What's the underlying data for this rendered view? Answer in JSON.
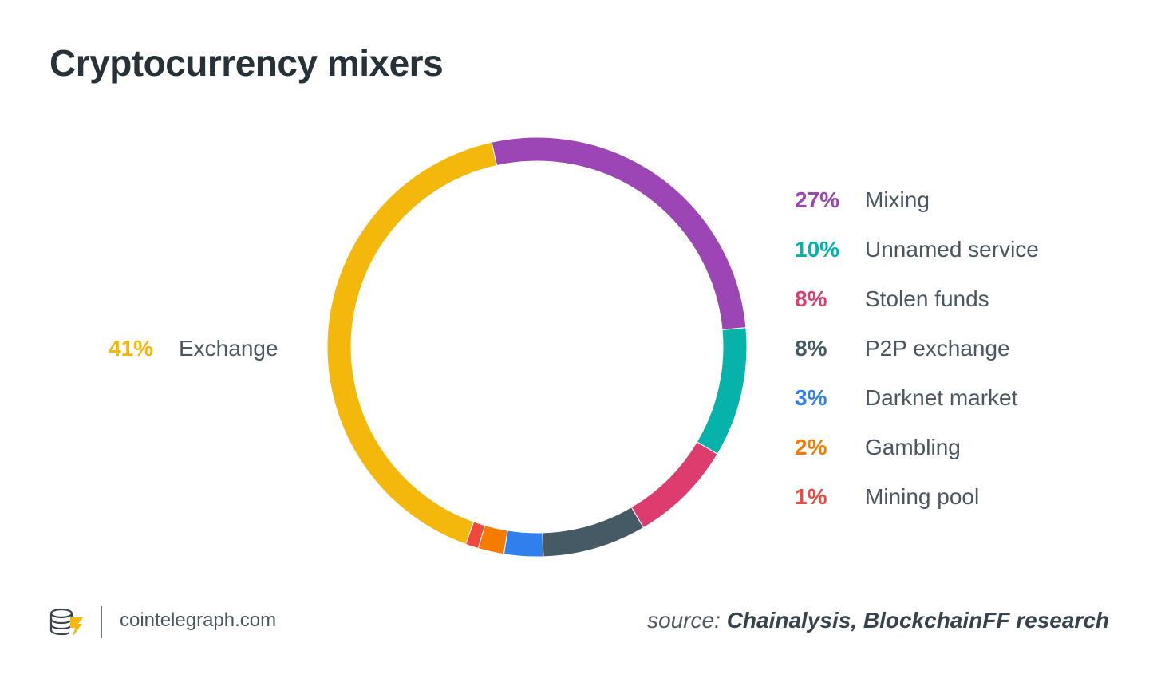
{
  "title": "Cryptocurrency mixers",
  "chart_data": {
    "type": "pie",
    "donut": true,
    "slices": [
      {
        "label": "Mixing",
        "value": 27,
        "pct_text": "27%",
        "color": "#9c45b5"
      },
      {
        "label": "Unnamed service",
        "value": 10,
        "pct_text": "10%",
        "color": "#05b3aa"
      },
      {
        "label": "Stolen funds",
        "value": 8,
        "pct_text": "8%",
        "color": "#dd3d6e"
      },
      {
        "label": "P2P exchange",
        "value": 8,
        "pct_text": "8%",
        "color": "#455a64"
      },
      {
        "label": "Darknet market",
        "value": 3,
        "pct_text": "3%",
        "color": "#2f80ed"
      },
      {
        "label": "Gambling",
        "value": 2,
        "pct_text": "2%",
        "color": "#f57c00"
      },
      {
        "label": "Mining pool",
        "value": 1,
        "pct_text": "1%",
        "color": "#f0483e"
      },
      {
        "label": "Exchange",
        "value": 41,
        "pct_text": "41%",
        "color": "#f4b70c"
      }
    ],
    "legend_placement": "right"
  },
  "footer": {
    "site": "cointelegraph.com",
    "source_prefix": "source:",
    "source_text": "Chainalysis, BlockchainFF research"
  },
  "icons": {
    "logo": "cointelegraph-coins-icon"
  }
}
